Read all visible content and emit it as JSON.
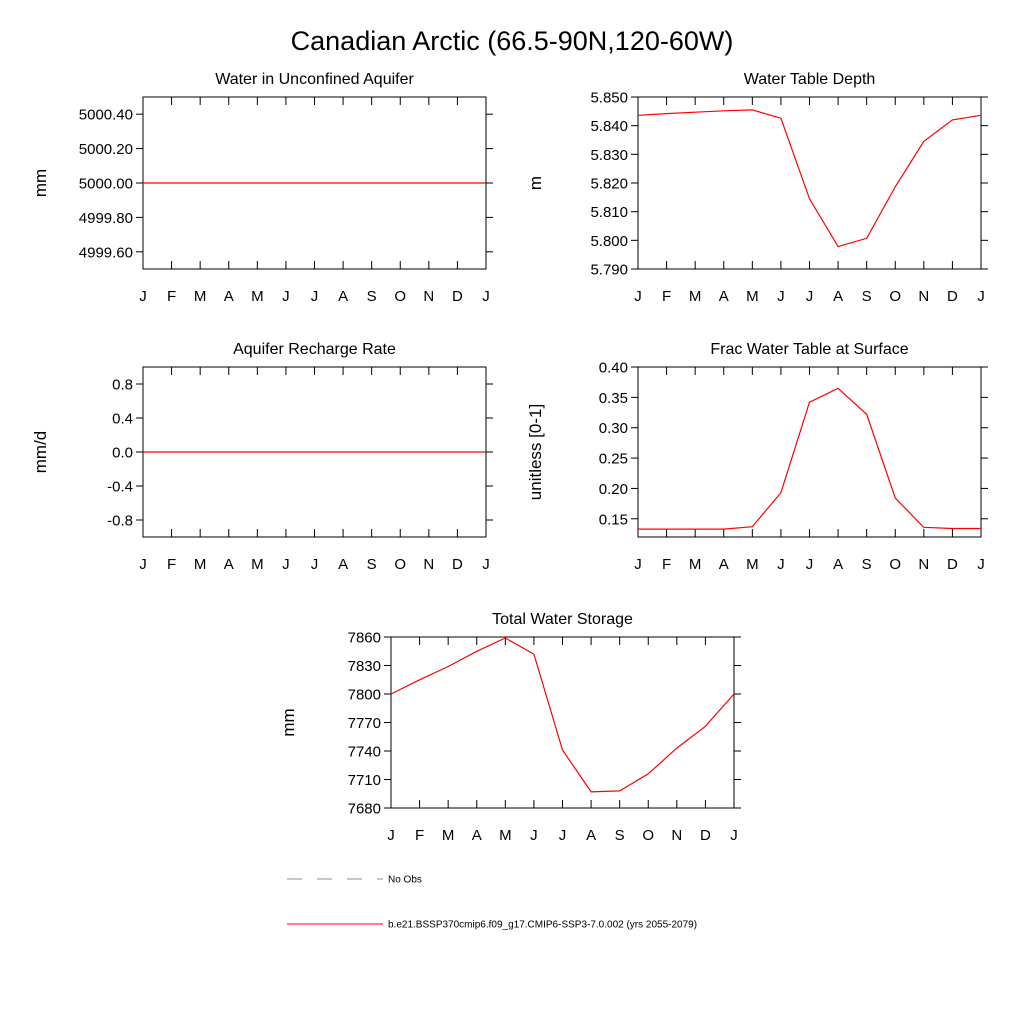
{
  "figure": {
    "title": "Canadian Arctic (66.5-90N,120-60W)",
    "legend": [
      {
        "label": "No Obs",
        "style": "dashed",
        "color": "#8c8c8c"
      },
      {
        "label": "b.e21.BSSP370cmip6.f09_g17.CMIP6-SSP3-7.0.002 (yrs 2055-2079)",
        "style": "solid",
        "color": "#ff0000"
      }
    ]
  },
  "chart_data": [
    {
      "type": "line",
      "title": "Water in Unconfined Aquifer",
      "ylabel": "mm",
      "categories": [
        "J",
        "F",
        "M",
        "A",
        "M",
        "J",
        "J",
        "A",
        "S",
        "O",
        "N",
        "D",
        "J"
      ],
      "ylim": [
        4999.5,
        5000.5
      ],
      "yticks": [
        "5000.40",
        "5000.20",
        "5000.00",
        "4999.80",
        "4999.60"
      ],
      "yticks_values": [
        5000.4,
        5000.2,
        5000.0,
        4999.8,
        4999.6
      ],
      "series": [
        {
          "name": "model",
          "color": "#ff0000",
          "values": [
            5000.0,
            5000.0,
            5000.0,
            5000.0,
            5000.0,
            5000.0,
            5000.0,
            5000.0,
            5000.0,
            5000.0,
            5000.0,
            5000.0,
            5000.0
          ]
        }
      ]
    },
    {
      "type": "line",
      "title": "Water Table Depth",
      "ylabel": "m",
      "categories": [
        "J",
        "F",
        "M",
        "A",
        "M",
        "J",
        "J",
        "A",
        "S",
        "O",
        "N",
        "D",
        "J"
      ],
      "ylim": [
        5.79,
        5.85
      ],
      "yticks": [
        "5.850",
        "5.840",
        "5.830",
        "5.820",
        "5.810",
        "5.800",
        "5.790"
      ],
      "yticks_values": [
        5.85,
        5.84,
        5.83,
        5.82,
        5.81,
        5.8,
        5.79
      ],
      "series": [
        {
          "name": "model",
          "color": "#ff0000",
          "values": [
            5.8436,
            5.8442,
            5.8447,
            5.8452,
            5.8455,
            5.8426,
            5.8145,
            5.7978,
            5.8007,
            5.8187,
            5.8345,
            5.842,
            5.8436
          ]
        }
      ]
    },
    {
      "type": "line",
      "title": "Aquifer Recharge Rate",
      "ylabel": "mm/d",
      "categories": [
        "J",
        "F",
        "M",
        "A",
        "M",
        "J",
        "J",
        "A",
        "S",
        "O",
        "N",
        "D",
        "J"
      ],
      "ylim": [
        -1.0,
        1.0
      ],
      "yticks": [
        "0.8",
        "0.4",
        "0.0",
        "-0.4",
        "-0.8"
      ],
      "yticks_values": [
        0.8,
        0.4,
        0.0,
        -0.4,
        -0.8
      ],
      "series": [
        {
          "name": "model",
          "color": "#ff0000",
          "values": [
            0,
            0,
            0,
            0,
            0,
            0,
            0,
            0,
            0,
            0,
            0,
            0,
            0
          ]
        }
      ]
    },
    {
      "type": "line",
      "title": "Frac Water Table at Surface",
      "ylabel": "unitless [0-1]",
      "categories": [
        "J",
        "F",
        "M",
        "A",
        "M",
        "J",
        "J",
        "A",
        "S",
        "O",
        "N",
        "D",
        "J"
      ],
      "ylim": [
        0.12,
        0.4
      ],
      "yticks": [
        "0.40",
        "0.35",
        "0.30",
        "0.25",
        "0.20",
        "0.15"
      ],
      "yticks_values": [
        0.4,
        0.35,
        0.3,
        0.25,
        0.2,
        0.15
      ],
      "series": [
        {
          "name": "model",
          "color": "#ff0000",
          "values": [
            0.133,
            0.133,
            0.133,
            0.133,
            0.137,
            0.193,
            0.342,
            0.365,
            0.322,
            0.184,
            0.136,
            0.134,
            0.134
          ]
        }
      ]
    },
    {
      "type": "line",
      "title": "Total Water Storage",
      "ylabel": "mm",
      "categories": [
        "J",
        "F",
        "M",
        "A",
        "M",
        "J",
        "J",
        "A",
        "S",
        "O",
        "N",
        "D",
        "J"
      ],
      "ylim": [
        7680,
        7860
      ],
      "yticks": [
        "7860",
        "7830",
        "7800",
        "7770",
        "7740",
        "7710",
        "7680"
      ],
      "yticks_values": [
        7860,
        7830,
        7800,
        7770,
        7740,
        7710,
        7680
      ],
      "series": [
        {
          "name": "model",
          "color": "#ff0000",
          "values": [
            7800,
            7815,
            7829,
            7845,
            7859,
            7842,
            7741,
            7697,
            7698,
            7716,
            7743,
            7766,
            7800
          ]
        }
      ]
    }
  ]
}
